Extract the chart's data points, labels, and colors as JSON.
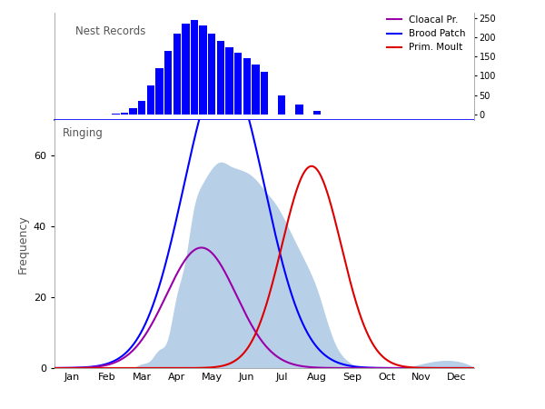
{
  "months": [
    "Jan",
    "Feb",
    "Mar",
    "Apr",
    "May",
    "Jun",
    "Jul",
    "Aug",
    "Sep",
    "Oct",
    "Nov",
    "Dec"
  ],
  "nest_bar_color": "#0000ff",
  "ringing_label": "Ringing",
  "nest_label": "Nest Records",
  "cloacal_label": "Cloacal Pr.",
  "brood_label": "Brood Patch",
  "moult_label": "Prim. Moult",
  "cloacal_color": "#9900aa",
  "brood_color": "#0000ff",
  "moult_color": "#dd0000",
  "fill_color": "#b8cfe8",
  "divider_color": "#0000ff",
  "background_color": "#ffffff",
  "nest_x_centers": [
    1.75,
    2.0,
    2.25,
    2.5,
    2.75,
    3.0,
    3.25,
    3.5,
    3.75,
    4.0,
    4.25,
    4.5,
    4.75,
    5.0,
    5.25,
    5.5,
    5.75,
    6.0,
    6.5,
    7.0,
    7.5
  ],
  "nest_heights": [
    2,
    5,
    15,
    35,
    75,
    120,
    165,
    210,
    235,
    245,
    230,
    210,
    190,
    175,
    160,
    145,
    130,
    110,
    50,
    25,
    10
  ],
  "nest_bar_width": 0.22,
  "nest_ylim": [
    0,
    265
  ],
  "nest_yticks": [
    0,
    50,
    100,
    150,
    200,
    250
  ],
  "ringing_ylim": [
    0,
    70
  ],
  "ringing_yticks": [
    0,
    20,
    40,
    60
  ],
  "brood_mu": 4.85,
  "brood_sigma": 1.15,
  "brood_amp": 85,
  "cloacal_mu": 4.2,
  "cloacal_sigma": 1.0,
  "cloacal_amp": 34,
  "moult_mu": 7.35,
  "moult_sigma": 0.85,
  "moult_amp": 57,
  "ringing_x": [
    2.5,
    2.75,
    3.0,
    3.25,
    3.5,
    3.75,
    4.0,
    4.25,
    4.5,
    4.75,
    5.0,
    5.25,
    5.5,
    5.75,
    6.0,
    6.25,
    6.5,
    6.75,
    7.0,
    7.25,
    7.5,
    7.75,
    8.0,
    8.25,
    8.5
  ],
  "ringing_y": [
    1,
    2,
    5,
    8,
    20,
    30,
    45,
    52,
    56,
    58,
    57,
    56,
    55,
    53,
    50,
    47,
    43,
    38,
    33,
    28,
    22,
    14,
    7,
    3,
    1
  ]
}
